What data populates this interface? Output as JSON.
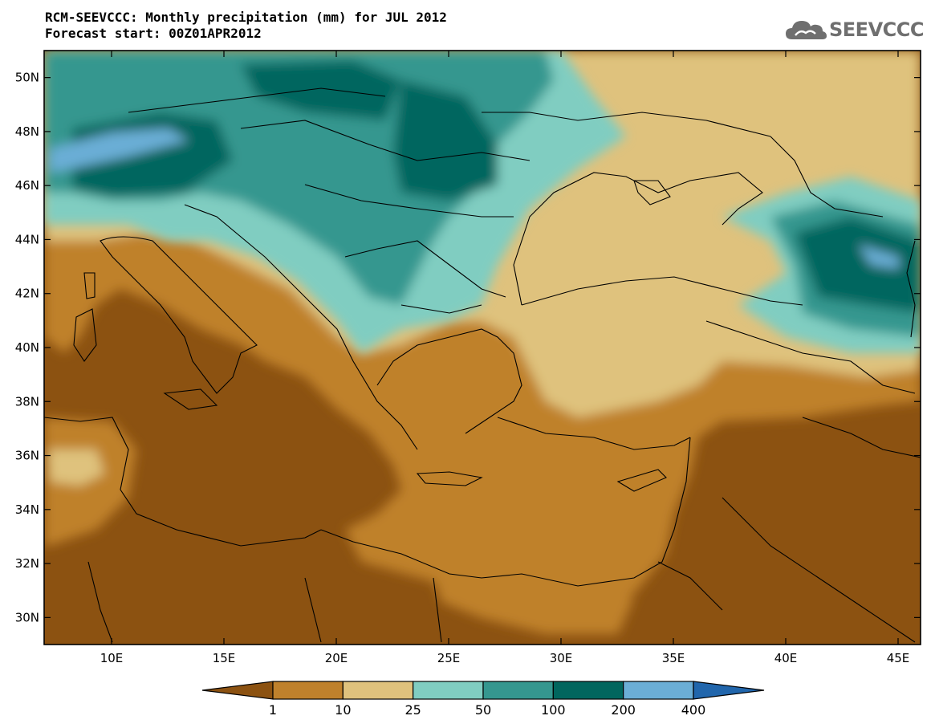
{
  "header": {
    "title_line1": "RCM-SEEVCCC: Monthly precipitation (mm) for JUL 2012",
    "title_line2": "Forecast start: 00Z01APR2012",
    "logo_text": "SEEVCCC",
    "logo_icon": "cloud-icon",
    "logo_color": "#6f6f6f"
  },
  "map": {
    "lon_range": [
      7,
      46
    ],
    "lat_range": [
      29,
      51
    ],
    "lon_ticks": [
      {
        "value": 10,
        "label": "10E"
      },
      {
        "value": 15,
        "label": "15E"
      },
      {
        "value": 20,
        "label": "20E"
      },
      {
        "value": 25,
        "label": "25E"
      },
      {
        "value": 30,
        "label": "30E"
      },
      {
        "value": 35,
        "label": "35E"
      },
      {
        "value": 40,
        "label": "40E"
      },
      {
        "value": 45,
        "label": "45E"
      }
    ],
    "lat_ticks": [
      {
        "value": 30,
        "label": "30N"
      },
      {
        "value": 32,
        "label": "32N"
      },
      {
        "value": 34,
        "label": "34N"
      },
      {
        "value": 36,
        "label": "36N"
      },
      {
        "value": 38,
        "label": "38N"
      },
      {
        "value": 40,
        "label": "40N"
      },
      {
        "value": 42,
        "label": "42N"
      },
      {
        "value": 44,
        "label": "44N"
      },
      {
        "value": 46,
        "label": "46N"
      },
      {
        "value": 48,
        "label": "48N"
      },
      {
        "value": 50,
        "label": "50N"
      }
    ]
  },
  "colorbar": {
    "unit": "mm",
    "boundaries": [
      "1",
      "10",
      "25",
      "50",
      "100",
      "200",
      "400"
    ],
    "colors": [
      "#8c5211",
      "#bf812c",
      "#dfc27d",
      "#80cdc1",
      "#35978f",
      "#01665e",
      "#6baed6",
      "#2166ac"
    ]
  }
}
